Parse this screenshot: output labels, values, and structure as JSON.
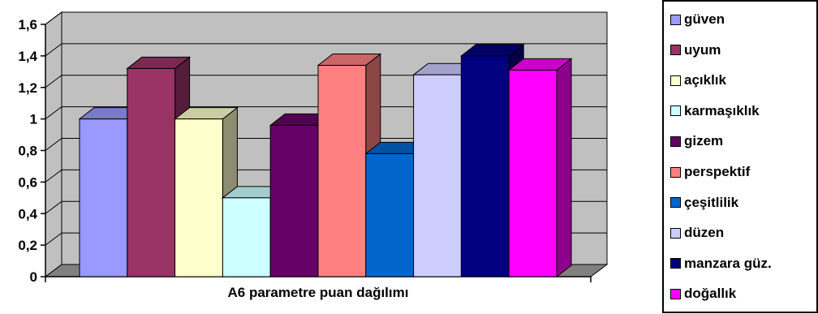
{
  "chart_data": {
    "type": "bar",
    "style": "3d-clustered-column",
    "title": "",
    "xlabel": "A6 parametre puan dağılımı",
    "ylabel": "",
    "categories": [
      "A6"
    ],
    "ylim": [
      0,
      1.6
    ],
    "yticks": [
      "0",
      "0,2",
      "0,4",
      "0,6",
      "0,8",
      "1",
      "1,2",
      "1,4",
      "1,6"
    ],
    "grid": true,
    "legend_position": "right",
    "series": [
      {
        "name": "güven",
        "values": [
          1.0
        ],
        "color": "#9999ff"
      },
      {
        "name": "uyum",
        "values": [
          1.32
        ],
        "color": "#993366"
      },
      {
        "name": "açıklık",
        "values": [
          1.0
        ],
        "color": "#ffffcc"
      },
      {
        "name": "karmaşıklık",
        "values": [
          0.5
        ],
        "color": "#ccffff"
      },
      {
        "name": "gizem",
        "values": [
          0.96
        ],
        "color": "#660066"
      },
      {
        "name": "perspektif",
        "values": [
          1.34
        ],
        "color": "#ff8080"
      },
      {
        "name": "çeşitlilik",
        "values": [
          0.78
        ],
        "color": "#0066cc"
      },
      {
        "name": "düzen",
        "values": [
          1.28
        ],
        "color": "#ccccff"
      },
      {
        "name": "manzara güz.",
        "values": [
          1.4
        ],
        "color": "#000080"
      },
      {
        "name": "doğallık",
        "values": [
          1.31
        ],
        "color": "#ff00ff"
      }
    ]
  }
}
